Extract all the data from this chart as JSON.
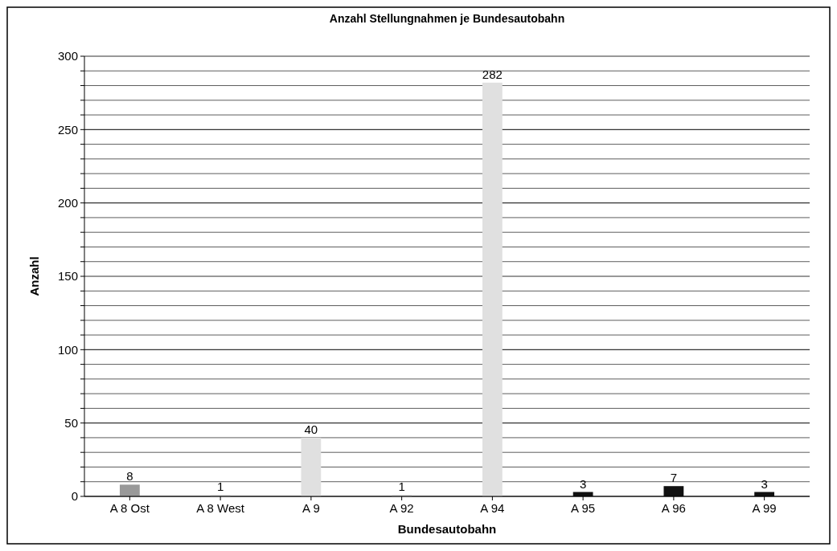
{
  "chart_data": {
    "type": "bar",
    "title": "Anzahl Stellungnahmen je Bundesautobahn",
    "xlabel": "Bundesautobahn",
    "ylabel": "Anzahl",
    "categories": [
      "A 8 Ost",
      "A 8 West",
      "A 9",
      "A 92",
      "A 94",
      "A 95",
      "A 96",
      "A 99"
    ],
    "values": [
      8,
      1,
      40,
      1,
      282,
      3,
      7,
      3
    ],
    "colors": [
      "#999999",
      "#d0d0d0",
      "#e0e0e0",
      "#d0d0d0",
      "#e0e0e0",
      "#111111",
      "#111111",
      "#111111"
    ],
    "ylim": [
      0,
      300
    ],
    "yticks": [
      0,
      {
        "value": 10,
        "label": null
      },
      {
        "value": 20,
        "label": null
      },
      {
        "value": 30,
        "label": null
      },
      {
        "value": 40,
        "label": null
      },
      50,
      {
        "value": 60,
        "label": null
      },
      {
        "value": 70,
        "label": null
      },
      {
        "value": 80,
        "label": null
      },
      {
        "value": 90,
        "label": null
      },
      100,
      {
        "value": 110,
        "label": null
      },
      {
        "value": 120,
        "label": null
      },
      {
        "value": 130,
        "label": null
      },
      {
        "value": 140,
        "label": null
      },
      150,
      {
        "value": 160,
        "label": null
      },
      {
        "value": 170,
        "label": null
      },
      {
        "value": 180,
        "label": null
      },
      {
        "value": 190,
        "label": null
      },
      200,
      {
        "value": 210,
        "label": null
      },
      {
        "value": 220,
        "label": null
      },
      {
        "value": 230,
        "label": null
      },
      {
        "value": 240,
        "label": null
      },
      250,
      {
        "value": 260,
        "label": null
      },
      {
        "value": 270,
        "label": null
      },
      {
        "value": 280,
        "label": null
      },
      {
        "value": 290,
        "label": null
      },
      300
    ],
    "grid": "y",
    "data_labels": true
  }
}
